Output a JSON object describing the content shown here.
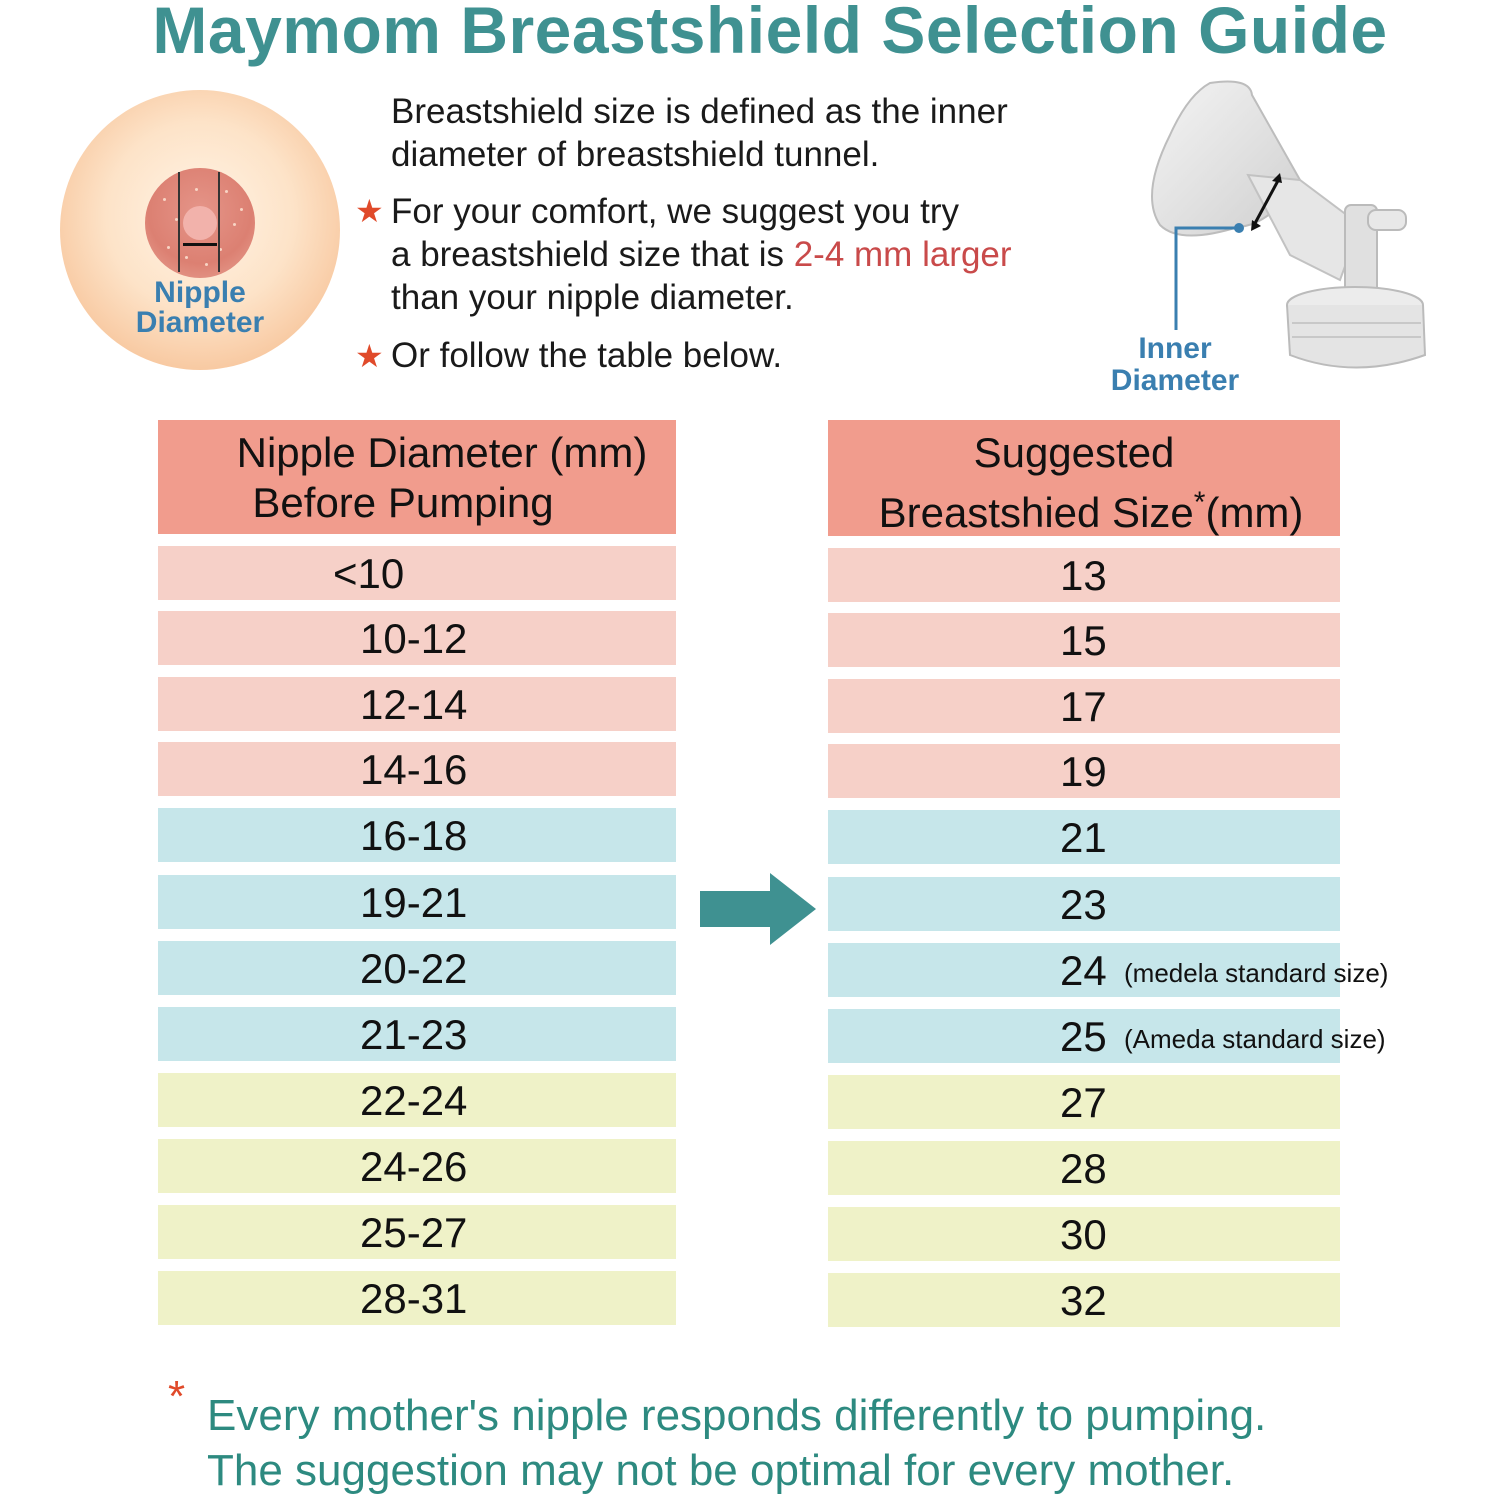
{
  "title": "Maymom Breastshield Selection Guide",
  "nipple_illustration": {
    "label_line1": "Nipple",
    "label_line2": "Diameter"
  },
  "description": {
    "intro_line1": "Breastshield size is defined as the inner",
    "intro_line2": "diameter of breastshield tunnel.",
    "tip1_line1": "For your comfort, we suggest you try",
    "tip1_line2_prefix": "a breastshield size that is ",
    "tip1_line2_highlight": "2-4 mm larger",
    "tip1_line3": "than your nipple diameter.",
    "tip2": "Or follow the table below.",
    "star_icon": "★"
  },
  "shield_illustration": {
    "label_line1": "Inner",
    "label_line2": "Diameter"
  },
  "table": {
    "left_header_line1": "Nipple Diameter (mm)",
    "left_header_line2": "Before Pumping",
    "right_header_line1": "Suggested",
    "right_header_line2": "Breastshied Size",
    "right_header_asterisk": "*",
    "right_header_unit": "(mm)",
    "rows": [
      {
        "nipple": "<10",
        "size": "13",
        "note": "",
        "color": "pink"
      },
      {
        "nipple": "10-12",
        "size": "15",
        "note": "",
        "color": "pink"
      },
      {
        "nipple": "12-14",
        "size": "17",
        "note": "",
        "color": "pink"
      },
      {
        "nipple": "14-16",
        "size": "19",
        "note": "",
        "color": "pink"
      },
      {
        "nipple": "16-18",
        "size": "21",
        "note": "",
        "color": "blue"
      },
      {
        "nipple": "19-21",
        "size": "23",
        "note": "",
        "color": "blue"
      },
      {
        "nipple": "20-22",
        "size": "24",
        "note": "(medela standard size)",
        "color": "blue"
      },
      {
        "nipple": "21-23",
        "size": "25",
        "note": "(Ameda standard size)",
        "color": "blue"
      },
      {
        "nipple": "22-24",
        "size": "27",
        "note": "",
        "color": "yellow"
      },
      {
        "nipple": "24-26",
        "size": "28",
        "note": "",
        "color": "yellow"
      },
      {
        "nipple": "25-27",
        "size": "30",
        "note": "",
        "color": "yellow"
      },
      {
        "nipple": "28-31",
        "size": "32",
        "note": "",
        "color": "yellow"
      }
    ]
  },
  "footnote": {
    "asterisk": "*",
    "line1": "Every mother's nipple responds differently to pumping.",
    "line2": "The suggestion may not be optimal for every mother."
  },
  "colors": {
    "title": "#3f9191",
    "header": "#f19c8d",
    "pink_row": "#f6d0c8",
    "blue_row": "#c6e6ea",
    "yellow_row": "#eff2c8",
    "arrow": "#3f9191",
    "highlight_red": "#c94a4a",
    "star": "#e04a2a",
    "label_blue": "#3a7fb0",
    "footnote": "#2d8a80"
  }
}
